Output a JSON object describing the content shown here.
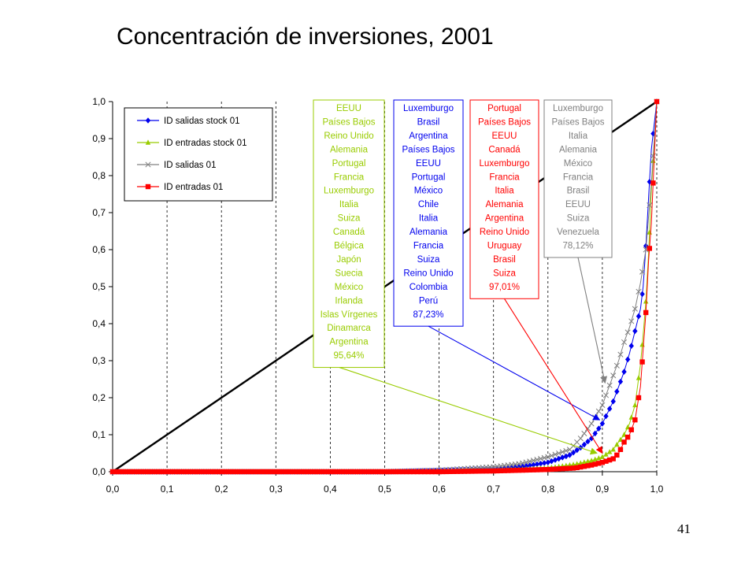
{
  "slide": {
    "title": "Concentración de inversiones, 2001",
    "page_number": "41"
  },
  "chart_data": {
    "type": "line",
    "title": "",
    "xlabel": "",
    "ylabel": "",
    "xlim": [
      0.0,
      1.0
    ],
    "ylim": [
      0.0,
      1.0
    ],
    "x_ticks": [
      "0,0",
      "0,1",
      "0,2",
      "0,3",
      "0,4",
      "0,5",
      "0,6",
      "0,7",
      "0,8",
      "0,9",
      "1,0"
    ],
    "y_ticks": [
      "0,0",
      "0,1",
      "0,2",
      "0,3",
      "0,4",
      "0,5",
      "0,6",
      "0,7",
      "0,8",
      "0,9",
      "1,0"
    ],
    "grid": "vertical dashed",
    "legend_position": "top-left",
    "colors": {
      "diagonal": "#000000",
      "id_salidas_stock": "#0000ee",
      "id_entradas_stock": "#99cc00",
      "id_salidas": "#808080",
      "id_entradas": "#ff0000"
    },
    "diagonal": [
      [
        0.0,
        0.0
      ],
      [
        1.0,
        1.0
      ]
    ],
    "series": [
      {
        "name": "ID salidas stock 01",
        "color": "#0000ee",
        "marker": "diamond",
        "points": [
          [
            0.0,
            0.0
          ],
          [
            0.5,
            0.0
          ],
          [
            0.6,
            0.003
          ],
          [
            0.7,
            0.008
          ],
          [
            0.75,
            0.013
          ],
          [
            0.8,
            0.025
          ],
          [
            0.84,
            0.045
          ],
          [
            0.86,
            0.065
          ],
          [
            0.88,
            0.09
          ],
          [
            0.89,
            0.11
          ],
          [
            0.9,
            0.13
          ],
          [
            0.91,
            0.16
          ],
          [
            0.92,
            0.19
          ],
          [
            0.93,
            0.23
          ],
          [
            0.94,
            0.27
          ],
          [
            0.95,
            0.32
          ],
          [
            0.96,
            0.38
          ],
          [
            0.97,
            0.44
          ],
          [
            0.975,
            0.5
          ],
          [
            0.98,
            0.61
          ],
          [
            0.985,
            0.74
          ],
          [
            0.99,
            0.87
          ],
          [
            1.0,
            1.0
          ]
        ]
      },
      {
        "name": "ID entradas stock 01",
        "color": "#99cc00",
        "marker": "triangle",
        "points": [
          [
            0.0,
            0.0
          ],
          [
            0.6,
            0.0
          ],
          [
            0.7,
            0.003
          ],
          [
            0.8,
            0.01
          ],
          [
            0.85,
            0.02
          ],
          [
            0.88,
            0.03
          ],
          [
            0.9,
            0.04
          ],
          [
            0.92,
            0.06
          ],
          [
            0.94,
            0.1
          ],
          [
            0.95,
            0.13
          ],
          [
            0.96,
            0.18
          ],
          [
            0.97,
            0.29
          ],
          [
            0.975,
            0.37
          ],
          [
            0.98,
            0.46
          ],
          [
            0.985,
            0.59
          ],
          [
            0.99,
            0.76
          ],
          [
            1.0,
            1.0
          ]
        ]
      },
      {
        "name": "ID salidas 01",
        "color": "#808080",
        "marker": "x",
        "points": [
          [
            0.0,
            0.0
          ],
          [
            0.5,
            0.0
          ],
          [
            0.6,
            0.004
          ],
          [
            0.7,
            0.013
          ],
          [
            0.75,
            0.022
          ],
          [
            0.8,
            0.04
          ],
          [
            0.84,
            0.06
          ],
          [
            0.86,
            0.09
          ],
          [
            0.88,
            0.13
          ],
          [
            0.9,
            0.18
          ],
          [
            0.91,
            0.22
          ],
          [
            0.92,
            0.26
          ],
          [
            0.93,
            0.3
          ],
          [
            0.94,
            0.35
          ],
          [
            0.95,
            0.39
          ],
          [
            0.96,
            0.44
          ],
          [
            0.97,
            0.51
          ],
          [
            0.98,
            0.6
          ],
          [
            0.99,
            0.78
          ],
          [
            1.0,
            1.0
          ]
        ]
      },
      {
        "name": "ID entradas 01",
        "color": "#ff0000",
        "marker": "square",
        "points": [
          [
            0.0,
            0.0
          ],
          [
            0.6,
            0.0
          ],
          [
            0.7,
            0.002
          ],
          [
            0.8,
            0.006
          ],
          [
            0.85,
            0.01
          ],
          [
            0.88,
            0.018
          ],
          [
            0.9,
            0.025
          ],
          [
            0.92,
            0.035
          ],
          [
            0.93,
            0.05
          ],
          [
            0.94,
            0.08
          ],
          [
            0.95,
            0.1
          ],
          [
            0.96,
            0.14
          ],
          [
            0.97,
            0.23
          ],
          [
            0.975,
            0.33
          ],
          [
            0.98,
            0.43
          ],
          [
            0.985,
            0.57
          ],
          [
            0.99,
            0.67
          ],
          [
            1.0,
            1.0
          ]
        ]
      }
    ],
    "annotations": [
      {
        "color": "#99cc00",
        "lines": [
          "EEUU",
          "Países Bajos",
          "Reino Unido",
          "Alemania",
          "Portugal",
          "Francia",
          "Luxemburgo",
          "Italia",
          "Suiza",
          "Canadá",
          "Bélgica",
          "Japón",
          "Suecia",
          "México",
          "Irlanda",
          "Islas Vírgenes",
          "Dinamarca",
          "Argentina",
          "95,64%"
        ],
        "arrow_to": [
          0.89,
          0.05
        ]
      },
      {
        "color": "#0000ee",
        "lines": [
          "Luxemburgo",
          "Brasil",
          "Argentina",
          "Países Bajos",
          "EEUU",
          "Portugal",
          "México",
          "Chile",
          "Italia",
          "Alemania",
          "Francia",
          "Suiza",
          "Reino Unido",
          "Colombia",
          "Perú",
          "87,23%"
        ],
        "arrow_to": [
          0.895,
          0.14
        ]
      },
      {
        "color": "#ff0000",
        "lines": [
          "Portugal",
          "Países Bajos",
          "EEUU",
          "Canadá",
          "Luxemburgo",
          "Francia",
          "Italia",
          "Alemania",
          "Argentina",
          "Reino Unido",
          "Uruguay",
          "Brasil",
          "Suiza",
          "97,01%"
        ],
        "arrow_to": [
          0.9,
          0.05
        ]
      },
      {
        "color": "#808080",
        "lines": [
          "Luxemburgo",
          "Países Bajos",
          "Italia",
          "Alemania",
          "México",
          "Francia",
          "Brasil",
          "EEUU",
          "Suiza",
          "Venezuela",
          "78,12%"
        ],
        "arrow_to": [
          0.905,
          0.24
        ]
      }
    ]
  }
}
